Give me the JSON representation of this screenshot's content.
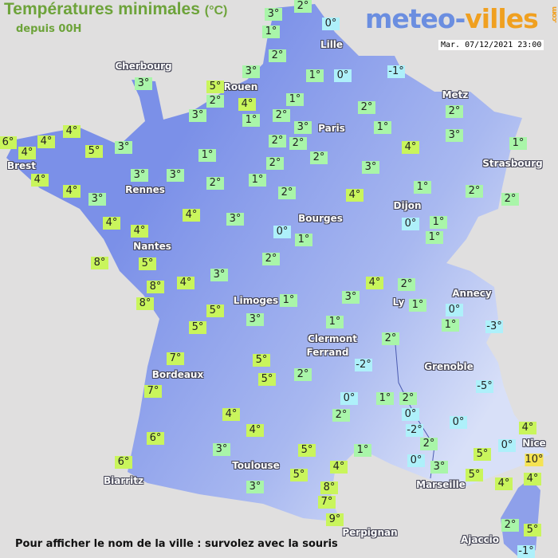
{
  "header": {
    "title": "Températures minimales",
    "unit": "(°C)",
    "subtitle": "depuis 00H",
    "logo_part1": "meteo-",
    "logo_part2": "villes",
    "logo_suffix": ".com",
    "datetime": "Mar. 07/12/2021 23:00"
  },
  "footer": {
    "hint": "Pour afficher le nom de la ville : survolez avec la souris"
  },
  "colors": {
    "land": "#7b90e8",
    "sea": "#e0dfdf",
    "cold": "#aef0fa",
    "cool": "#a9f5a9",
    "mild": "#c9f55c",
    "warm": "#f5e352",
    "title": "#6da33a"
  },
  "cities": [
    "Cherbourg",
    "Rouen",
    "Lille",
    "Paris",
    "Metz",
    "Strasbourg",
    "Brest",
    "Rennes",
    "Nantes",
    "Bourges",
    "Dijon",
    "Limoges",
    "Ly",
    "Annecy",
    "Clermont",
    "Ferrand",
    "Grenoble",
    "Bordeaux",
    "Toulouse",
    "Biarritz",
    "Marseille",
    "Nice",
    "Perpignan",
    "Ajaccio"
  ],
  "temps": [
    "3°",
    "2°",
    "1°",
    "0°",
    "2°",
    "3°",
    "1°",
    "0°",
    "-1°",
    "5°",
    "2°",
    "4°",
    "1°",
    "3°",
    "1°",
    "2°",
    "3°",
    "2°",
    "1°",
    "2°",
    "3°",
    "4°",
    "1°",
    "3°",
    "4°",
    "6°",
    "4°",
    "4°",
    "5°",
    "3°",
    "4°",
    "4°",
    "3°",
    "3°",
    "3°",
    "1°",
    "2°",
    "2°",
    "2°",
    "2°",
    "2°",
    "1°",
    "2°",
    "3°",
    "4°",
    "1°",
    "2°",
    "2°",
    "4°",
    "4°",
    "4°",
    "3°",
    "0°",
    "1°",
    "0°",
    "1°",
    "1°",
    "8°",
    "5°",
    "2°",
    "8°",
    "4°",
    "3°",
    "8°",
    "5°",
    "5°",
    "3°",
    "1°",
    "3°",
    "4°",
    "2°",
    "1°",
    "0°",
    "1°",
    "-3°",
    "1°",
    "2°",
    "-2°",
    "2°",
    "7°",
    "7°",
    "5°",
    "5°",
    "0°",
    "1°",
    "2°",
    "0°",
    "-2°",
    "2°",
    "0°",
    "-5°",
    "4°",
    "4°",
    "6°",
    "3°",
    "6°",
    "5°",
    "1°",
    "4°",
    "2°",
    "0°",
    "3°",
    "5°",
    "0°",
    "4°",
    "10°",
    "5°",
    "4°",
    "4°",
    "5°",
    "8°",
    "7°",
    "9°",
    "3°",
    "2°",
    "5°",
    "-1°"
  ]
}
